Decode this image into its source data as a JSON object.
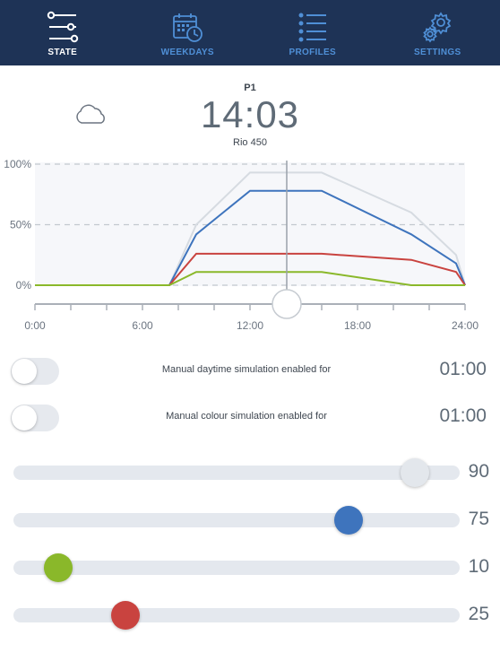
{
  "nav": {
    "tabs": [
      {
        "label": "STATE",
        "icon": "sliders-icon",
        "active": true
      },
      {
        "label": "WEEKDAYS",
        "icon": "calendar-clock-icon",
        "active": false
      },
      {
        "label": "PROFILES",
        "icon": "list-icon",
        "active": false
      },
      {
        "label": "SETTINGS",
        "icon": "gears-icon",
        "active": false
      }
    ]
  },
  "header": {
    "weather_icon": "cloud-icon",
    "profile": "P1",
    "time": "14:03",
    "device": "Rio 450"
  },
  "chart_data": {
    "type": "line",
    "y_ticks": [
      "100%",
      "50%",
      "0%"
    ],
    "x_ticks": [
      "0:00",
      "6:00",
      "12:00",
      "18:00",
      "24:00"
    ],
    "xlim": [
      0,
      24
    ],
    "ylim": [
      0,
      100
    ],
    "current_time_hours": 14.05,
    "series": [
      {
        "color": "#d6dbe1",
        "points": [
          [
            0,
            0
          ],
          [
            7.5,
            0
          ],
          [
            9,
            50
          ],
          [
            12,
            93
          ],
          [
            16,
            93
          ],
          [
            21,
            60
          ],
          [
            23.5,
            25
          ],
          [
            24,
            0
          ]
        ]
      },
      {
        "color": "#3e74bd",
        "points": [
          [
            0,
            0
          ],
          [
            7.5,
            0
          ],
          [
            9,
            42
          ],
          [
            12,
            78
          ],
          [
            16,
            78
          ],
          [
            21,
            42
          ],
          [
            23.5,
            18
          ],
          [
            24,
            0
          ]
        ]
      },
      {
        "color": "#c9433f",
        "points": [
          [
            0,
            0
          ],
          [
            7.5,
            0
          ],
          [
            9,
            26
          ],
          [
            12,
            26
          ],
          [
            16,
            26
          ],
          [
            21,
            21
          ],
          [
            23.5,
            11
          ],
          [
            24,
            0
          ]
        ]
      },
      {
        "color": "#8ab82a",
        "points": [
          [
            0,
            0
          ],
          [
            7.5,
            0
          ],
          [
            9,
            11
          ],
          [
            12,
            11
          ],
          [
            16,
            11
          ],
          [
            21,
            0
          ],
          [
            24,
            0
          ]
        ]
      }
    ]
  },
  "toggles": [
    {
      "label": "Manual daytime simulation enabled for",
      "value": "01:00"
    },
    {
      "label": "Manual colour simulation enabled for",
      "value": "01:00"
    }
  ],
  "sliders": [
    {
      "value": 90,
      "label": "90",
      "color": "#e3e7ec"
    },
    {
      "value": 75,
      "label": "75",
      "color": "#3e74bd"
    },
    {
      "value": 10,
      "label": "10",
      "color": "#8ab82a"
    },
    {
      "value": 25,
      "label": "25",
      "color": "#c9433f"
    }
  ]
}
